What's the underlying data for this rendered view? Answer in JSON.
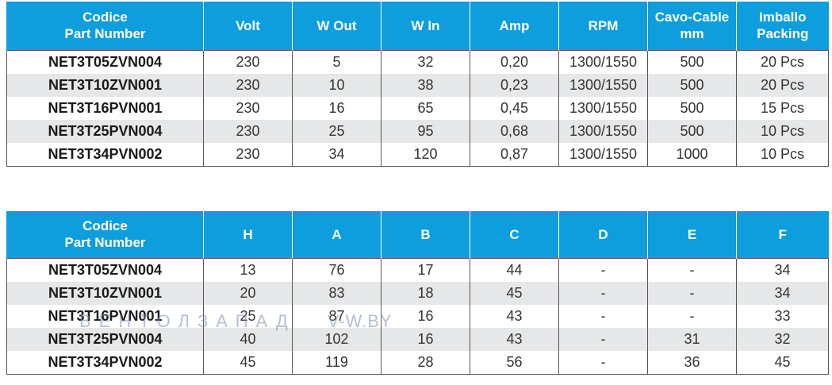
{
  "electrical": {
    "headers": [
      "Codice\nPart Number",
      "Volt",
      "W Out",
      "W In",
      "Amp",
      "RPM",
      "Cavo-Cable\nmm",
      "Imballo\nPacking"
    ],
    "rows": [
      [
        "NET3T05ZVN004",
        "230",
        "5",
        "32",
        "0,20",
        "1300/1550",
        "500",
        "20 Pcs"
      ],
      [
        "NET3T10ZVN001",
        "230",
        "10",
        "38",
        "0,23",
        "1300/1550",
        "500",
        "20 Pcs"
      ],
      [
        "NET3T16PVN001",
        "230",
        "16",
        "65",
        "0,45",
        "1300/1550",
        "500",
        "15 Pcs"
      ],
      [
        "NET3T25PVN004",
        "230",
        "25",
        "95",
        "0,68",
        "1300/1550",
        "500",
        "10 Pcs"
      ],
      [
        "NET3T34PVN002",
        "230",
        "34",
        "120",
        "0,87",
        "1300/1550",
        "1000",
        "10 Pcs"
      ]
    ]
  },
  "dimensions": {
    "headers": [
      "Codice\nPart Number",
      "H",
      "A",
      "B",
      "C",
      "D",
      "E",
      "F"
    ],
    "rows": [
      [
        "NET3T05ZVN004",
        "13",
        "76",
        "17",
        "44",
        "-",
        "-",
        "34"
      ],
      [
        "NET3T10ZVN001",
        "20",
        "83",
        "18",
        "45",
        "-",
        "-",
        "34"
      ],
      [
        "NET3T16PVN001",
        "25",
        "87",
        "16",
        "43",
        "-",
        "-",
        "33"
      ],
      [
        "NET3T25PVN004",
        "40",
        "102",
        "16",
        "43",
        "-",
        "31",
        "32"
      ],
      [
        "NET3T34PVN002",
        "45",
        "119",
        "28",
        "56",
        "-",
        "36",
        "45"
      ]
    ]
  },
  "watermark": {
    "brand": "ВЕНТОЛЗАПАД",
    "domain": "V-W.BY"
  },
  "colors": {
    "header_bg": "#0e9ede",
    "row_alt_bg": "#e6e7e8"
  }
}
